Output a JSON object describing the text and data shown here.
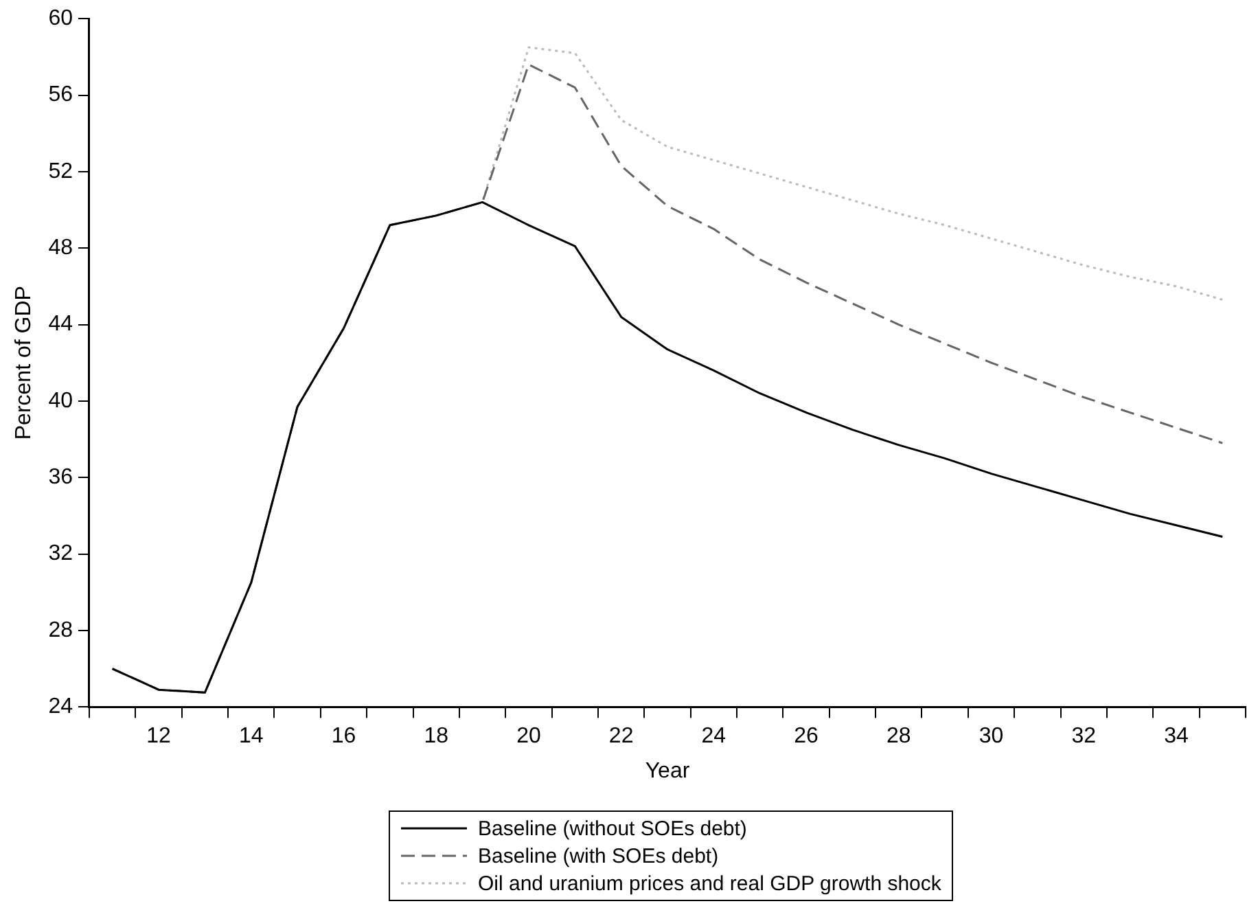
{
  "chart_data": {
    "type": "line",
    "xlabel": "Year",
    "ylabel": "Percent of GDP",
    "categories": [
      null,
      "12",
      null,
      "14",
      null,
      "16",
      null,
      "18",
      null,
      "20",
      null,
      "22",
      null,
      "24",
      null,
      "26",
      null,
      "28",
      null,
      "30",
      null,
      "32",
      null,
      "34",
      null
    ],
    "series": [
      {
        "name": "Baseline (without SOEs debt)",
        "color": "#000000",
        "line_style": "solid",
        "values": [
          26.0,
          24.9,
          24.75,
          30.5,
          39.7,
          43.8,
          49.2,
          49.7,
          50.4,
          49.2,
          48.1,
          44.4,
          42.7,
          41.6,
          40.4,
          39.4,
          38.5,
          37.7,
          37.0,
          36.2,
          35.5,
          34.8,
          34.1,
          33.5,
          32.9
        ]
      },
      {
        "name": "Baseline (with SOEs debt)",
        "color": "#666666",
        "line_style": "dashed",
        "values": [
          26.0,
          24.9,
          24.75,
          30.5,
          39.7,
          43.8,
          49.2,
          49.7,
          50.4,
          57.6,
          56.4,
          52.3,
          50.2,
          49.0,
          47.4,
          46.2,
          45.1,
          44.0,
          43.0,
          42.0,
          41.1,
          40.2,
          39.4,
          38.6,
          37.8
        ]
      },
      {
        "name": "Oil and uranium prices and real GDP growth shock",
        "color": "#bbbbbb",
        "line_style": "dotted",
        "values": [
          26.0,
          24.9,
          24.75,
          30.5,
          39.7,
          43.8,
          49.2,
          49.7,
          50.4,
          58.5,
          58.2,
          54.7,
          53.3,
          52.6,
          51.9,
          51.2,
          50.5,
          49.8,
          49.2,
          48.5,
          47.8,
          47.1,
          46.5,
          46.0,
          45.3
        ]
      }
    ],
    "ylim": [
      24,
      60
    ],
    "yticks": [
      24,
      28,
      32,
      36,
      40,
      44,
      48,
      52,
      56,
      60
    ],
    "grid": false,
    "legend": "bottom",
    "marker": "none"
  }
}
